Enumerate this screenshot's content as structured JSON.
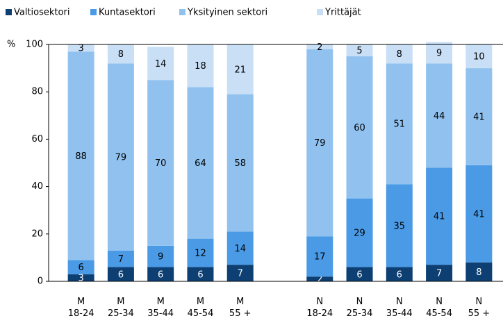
{
  "chart_data": {
    "type": "stacked_bar",
    "y_label": "%",
    "categories": [
      "M\n18-24",
      "M\n25-34",
      "M\n35-44",
      "M\n45-54",
      "M\n55 +",
      null,
      "N\n18-24",
      "N\n25-34",
      "N\n35-44",
      "N\n45-54",
      "N\n55 +"
    ],
    "series": [
      {
        "name": "Valtiosektori",
        "color": "#0d3f73",
        "values": [
          3,
          6,
          6,
          6,
          7,
          null,
          2,
          6,
          6,
          7,
          8
        ]
      },
      {
        "name": "Kuntasektori",
        "color": "#4a9ae6",
        "values": [
          6,
          7,
          9,
          12,
          14,
          null,
          17,
          29,
          35,
          41,
          41
        ]
      },
      {
        "name": "Yksityinen sektori",
        "color": "#91c2ef",
        "values": [
          88,
          79,
          70,
          64,
          58,
          null,
          79,
          60,
          51,
          44,
          41
        ]
      },
      {
        "name": "Yrittäjät",
        "color": "#c8dff6",
        "values": [
          3,
          8,
          14,
          18,
          21,
          null,
          2,
          5,
          8,
          9,
          10
        ]
      }
    ],
    "ylim": [
      0,
      100
    ],
    "yticks": [
      0,
      20,
      40,
      60,
      80,
      100
    ],
    "grid": false,
    "legend": "top"
  }
}
